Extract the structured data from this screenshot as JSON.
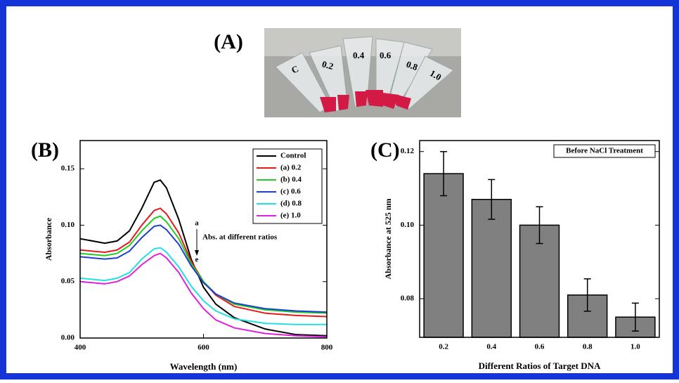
{
  "photo": {
    "panel_label": "(A)",
    "tube_labels": [
      "C",
      "0.2",
      "0.4",
      "0.6",
      "0.8",
      "1.0"
    ]
  },
  "chart_data": [
    {
      "type": "line",
      "panel_label": "(B)",
      "x_label": "Wavelength (nm)",
      "y_label": "Absorbance",
      "xlim": [
        400,
        800
      ],
      "xticks": [
        400,
        600,
        800
      ],
      "ylim": [
        0,
        0.175
      ],
      "yticks": [
        {
          "value": 0,
          "label": "0.00"
        },
        {
          "value": 0.05,
          "label": "0.05"
        },
        {
          "value": 0.1,
          "label": "0.10"
        },
        {
          "value": 0.15,
          "label": "0.15"
        }
      ],
      "legend": "top-right",
      "annotations": [
        "a",
        "Abs. at different ratios",
        "e"
      ],
      "x": [
        400,
        440,
        460,
        480,
        500,
        520,
        530,
        540,
        560,
        580,
        600,
        620,
        650,
        700,
        750,
        800
      ],
      "series": [
        {
          "name": "Control",
          "color": "#000000",
          "values": [
            0.088,
            0.084,
            0.086,
            0.095,
            0.115,
            0.138,
            0.14,
            0.133,
            0.105,
            0.07,
            0.045,
            0.03,
            0.018,
            0.008,
            0.003,
            0.002
          ]
        },
        {
          "name": "(a) 0.2",
          "color": "#e41a1c",
          "values": [
            0.078,
            0.076,
            0.078,
            0.085,
            0.1,
            0.113,
            0.115,
            0.11,
            0.093,
            0.068,
            0.05,
            0.038,
            0.028,
            0.022,
            0.02,
            0.019
          ]
        },
        {
          "name": "(b) 0.4",
          "color": "#22cc22",
          "values": [
            0.075,
            0.073,
            0.075,
            0.082,
            0.095,
            0.106,
            0.108,
            0.103,
            0.088,
            0.066,
            0.05,
            0.039,
            0.03,
            0.025,
            0.023,
            0.022
          ]
        },
        {
          "name": "(c) 0.6",
          "color": "#1f3fd0",
          "values": [
            0.072,
            0.07,
            0.071,
            0.077,
            0.089,
            0.099,
            0.1,
            0.096,
            0.083,
            0.064,
            0.049,
            0.039,
            0.031,
            0.026,
            0.024,
            0.023
          ]
        },
        {
          "name": "(d) 0.8",
          "color": "#22e0e0",
          "values": [
            0.053,
            0.051,
            0.053,
            0.058,
            0.07,
            0.079,
            0.08,
            0.076,
            0.063,
            0.046,
            0.033,
            0.024,
            0.017,
            0.013,
            0.012,
            0.012
          ]
        },
        {
          "name": "(e) 1.0",
          "color": "#e020e0",
          "values": [
            0.05,
            0.048,
            0.05,
            0.055,
            0.065,
            0.073,
            0.075,
            0.071,
            0.058,
            0.04,
            0.026,
            0.016,
            0.009,
            0.004,
            0.002,
            0.001
          ]
        }
      ]
    },
    {
      "type": "bar",
      "panel_label": "(C)",
      "x_label": "Different Ratios of Target DNA",
      "y_label": "Absorbance at 525 nm",
      "annotation": "Before NaCl Treatment",
      "color": "#808080",
      "categories": [
        "0.2",
        "0.4",
        "0.6",
        "0.8",
        "1.0"
      ],
      "values": [
        0.114,
        0.107,
        0.1,
        0.081,
        0.075
      ],
      "errors": [
        0.006,
        0.0054,
        0.005,
        0.0044,
        0.0038
      ],
      "ylim": [
        0.0695,
        0.123
      ],
      "yticks": [
        0.08,
        {
          "value": 0.1,
          "label": "0.10"
        },
        0.12
      ]
    }
  ]
}
